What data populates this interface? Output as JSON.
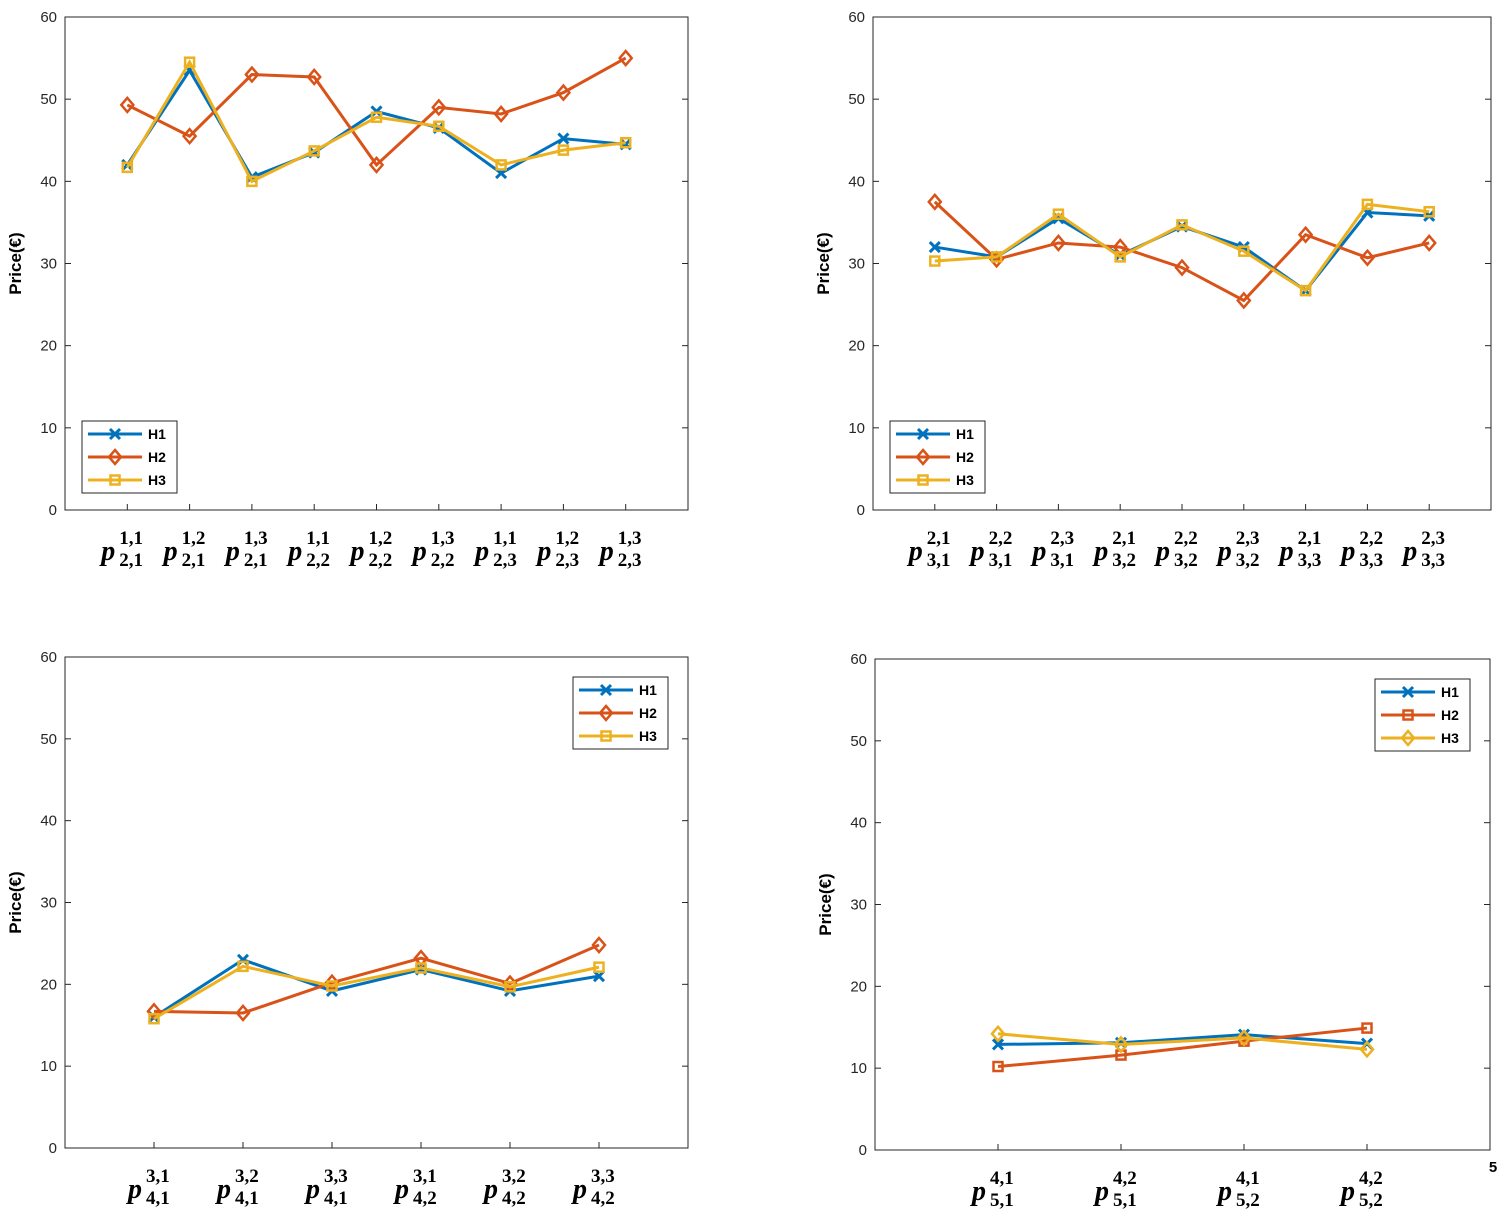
{
  "chart_data": [
    {
      "type": "line",
      "y_label": "Price(€)",
      "ylim": [
        0,
        60
      ],
      "yticks": [
        0,
        10,
        20,
        30,
        40,
        50,
        60
      ],
      "legend": "lower left",
      "categories": [
        {
          "symbol": "p",
          "sup": "1,1",
          "sub": "2,1"
        },
        {
          "symbol": "p",
          "sup": "1,2",
          "sub": "2,1"
        },
        {
          "symbol": "p",
          "sup": "1,3",
          "sub": "2,1"
        },
        {
          "symbol": "p",
          "sup": "1,1",
          "sub": "2,2"
        },
        {
          "symbol": "p",
          "sup": "1,2",
          "sub": "2,2"
        },
        {
          "symbol": "p",
          "sup": "1,3",
          "sub": "2,2"
        },
        {
          "symbol": "p",
          "sup": "1,1",
          "sub": "2,3"
        },
        {
          "symbol": "p",
          "sup": "1,2",
          "sub": "2,3"
        },
        {
          "symbol": "p",
          "sup": "1,3",
          "sub": "2,3"
        }
      ],
      "series": [
        {
          "name": "H1",
          "color": "#0072BD",
          "marker": "x",
          "values": [
            42,
            53.5,
            40.5,
            43.5,
            48.5,
            46.5,
            41,
            45.2,
            44.5
          ]
        },
        {
          "name": "H2",
          "color": "#D95319",
          "marker": "diamond",
          "values": [
            49.3,
            45.5,
            53,
            52.7,
            42,
            49,
            48.2,
            50.8,
            55
          ]
        },
        {
          "name": "H3",
          "color": "#EDB120",
          "marker": "square",
          "values": [
            41.7,
            54.5,
            40,
            43.7,
            47.8,
            46.7,
            42,
            43.8,
            44.7
          ]
        }
      ]
    },
    {
      "type": "line",
      "y_label": "Price(€)",
      "ylim": [
        0,
        60
      ],
      "yticks": [
        0,
        10,
        20,
        30,
        40,
        50,
        60
      ],
      "legend": "lower left",
      "categories": [
        {
          "symbol": "p",
          "sup": "2,1",
          "sub": "3,1"
        },
        {
          "symbol": "p",
          "sup": "2,2",
          "sub": "3,1"
        },
        {
          "symbol": "p",
          "sup": "2,3",
          "sub": "3,1"
        },
        {
          "symbol": "p",
          "sup": "2,1",
          "sub": "3,2"
        },
        {
          "symbol": "p",
          "sup": "2,2",
          "sub": "3,2"
        },
        {
          "symbol": "p",
          "sup": "2,3",
          "sub": "3,2"
        },
        {
          "symbol": "p",
          "sup": "2,1",
          "sub": "3,3"
        },
        {
          "symbol": "p",
          "sup": "2,2",
          "sub": "3,3"
        },
        {
          "symbol": "p",
          "sup": "2,3",
          "sub": "3,3"
        }
      ],
      "series": [
        {
          "name": "H1",
          "color": "#0072BD",
          "marker": "x",
          "values": [
            32,
            30.8,
            35.5,
            31,
            34.5,
            32,
            26.7,
            36.2,
            35.8
          ]
        },
        {
          "name": "H2",
          "color": "#D95319",
          "marker": "diamond",
          "values": [
            37.5,
            30.5,
            32.5,
            32,
            29.5,
            25.5,
            33.5,
            30.7,
            32.5
          ]
        },
        {
          "name": "H3",
          "color": "#EDB120",
          "marker": "square",
          "values": [
            30.3,
            30.8,
            36,
            30.8,
            34.7,
            31.5,
            26.7,
            37.2,
            36.3
          ]
        }
      ]
    },
    {
      "type": "line",
      "y_label": "Price(€)",
      "ylim": [
        0,
        60
      ],
      "yticks": [
        0,
        10,
        20,
        30,
        40,
        50,
        60
      ],
      "legend": "upper right",
      "categories": [
        {
          "symbol": "p",
          "sup": "3,1",
          "sub": "4,1"
        },
        {
          "symbol": "p",
          "sup": "3,2",
          "sub": "4,1"
        },
        {
          "symbol": "p",
          "sup": "3,3",
          "sub": "4,1"
        },
        {
          "symbol": "p",
          "sup": "3,1",
          "sub": "4,2"
        },
        {
          "symbol": "p",
          "sup": "3,2",
          "sub": "4,2"
        },
        {
          "symbol": "p",
          "sup": "3,3",
          "sub": "4,2"
        }
      ],
      "series": [
        {
          "name": "H1",
          "color": "#0072BD",
          "marker": "x",
          "values": [
            16,
            23,
            19.2,
            21.8,
            19.2,
            21
          ]
        },
        {
          "name": "H2",
          "color": "#D95319",
          "marker": "diamond",
          "values": [
            16.7,
            16.5,
            20.2,
            23.2,
            20.1,
            24.8
          ]
        },
        {
          "name": "H3",
          "color": "#EDB120",
          "marker": "square",
          "values": [
            15.8,
            22.2,
            19.8,
            22,
            19.7,
            22.1
          ]
        }
      ]
    },
    {
      "type": "line",
      "y_label": "Price(€)",
      "ylim": [
        0,
        60
      ],
      "yticks": [
        0,
        10,
        20,
        30,
        40,
        50,
        60
      ],
      "legend": "upper right",
      "categories": [
        {
          "symbol": "p",
          "sup": "4,1",
          "sub": "5,1"
        },
        {
          "symbol": "p",
          "sup": "4,2",
          "sub": "5,1"
        },
        {
          "symbol": "p",
          "sup": "4,1",
          "sub": "5,2"
        },
        {
          "symbol": "p",
          "sup": "4,2",
          "sub": "5,2"
        }
      ],
      "series": [
        {
          "name": "H1",
          "color": "#0072BD",
          "marker": "x",
          "values": [
            12.9,
            13.1,
            14.1,
            13
          ]
        },
        {
          "name": "H2",
          "color": "#D95319",
          "marker": "square",
          "values": [
            10.2,
            11.6,
            13.3,
            14.9
          ]
        },
        {
          "name": "H3",
          "color": "#EDB120",
          "marker": "diamond",
          "values": [
            14.2,
            12.9,
            13.7,
            12.3
          ]
        }
      ]
    }
  ],
  "page_number": "5"
}
